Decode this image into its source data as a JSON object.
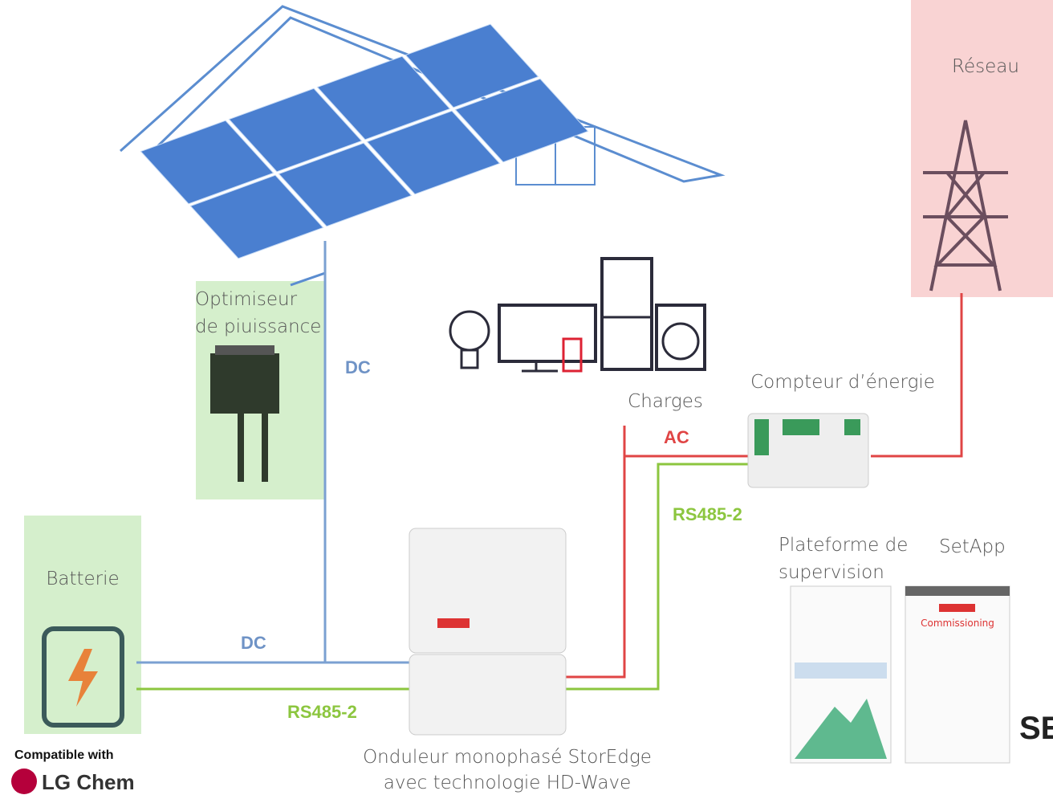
{
  "grid": {
    "label": "Réseau"
  },
  "optimizer": {
    "label": [
      "Optimiseur",
      "de piuissance"
    ]
  },
  "loads": {
    "label": "Charges"
  },
  "meter": {
    "label": "Compteur d’énergie"
  },
  "monitoring": {
    "label": [
      "Plateforme de",
      "supervision"
    ]
  },
  "setapp": {
    "label": "SetApp",
    "screen_title": "Commissioning"
  },
  "battery": {
    "label": "Batterie",
    "compatible": "Compatible with",
    "brand": "LG Chem"
  },
  "inverter": {
    "label": [
      "Onduleur monophasé StorEdge",
      "avec technologie HD-Wave"
    ]
  },
  "connections": {
    "dc_panels": "DC",
    "dc_battery": "DC",
    "ac": "AC",
    "rs485_meter": "RS485-2",
    "rs485_battery": "RS485-2"
  }
}
